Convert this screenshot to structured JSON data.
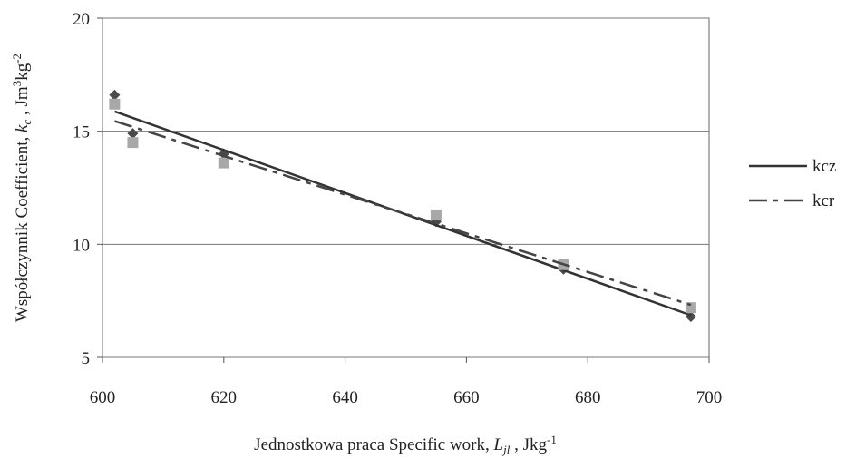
{
  "chart_data": {
    "type": "scatter",
    "x_label": [
      "Jednostkowa praca Specific work, ",
      "L",
      "jl",
      " , Jkg",
      "-1"
    ],
    "y_label": [
      "Współczynnik  Coefficient, ",
      "k",
      "c",
      " , Jm",
      "3",
      "kg",
      "-2"
    ],
    "series": [
      {
        "name": "kcz",
        "color": "#4a4a4a",
        "marker": "diamond",
        "line": "solid",
        "x": [
          602,
          605,
          620,
          655,
          676,
          697
        ],
        "values": [
          16.6,
          14.9,
          14.0,
          11.0,
          8.9,
          6.8
        ]
      },
      {
        "name": "kcr",
        "color": "#a8a8a8",
        "marker": "square",
        "line": "dashed",
        "x": [
          602,
          605,
          620,
          655,
          676,
          697
        ],
        "values": [
          16.2,
          14.5,
          13.6,
          11.3,
          9.1,
          7.2
        ]
      }
    ],
    "trendline": "linear",
    "xlim": [
      600,
      700
    ],
    "xticks": [
      600,
      620,
      640,
      660,
      680,
      700
    ],
    "ylim": [
      5,
      20
    ],
    "yticks": [
      5,
      10,
      15,
      20
    ],
    "grid": true,
    "legend": "right"
  }
}
